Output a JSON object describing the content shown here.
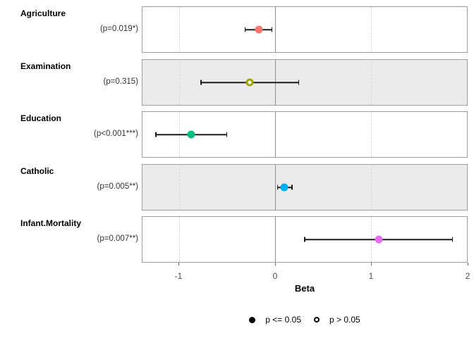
{
  "chart_data": {
    "type": "scatter",
    "subtype": "forest-coefficient-plot",
    "xlabel": "Beta",
    "axis": {
      "domain": [
        -1.38,
        2.0
      ],
      "ticks": [
        -1,
        0,
        1,
        2
      ],
      "dashed_gridlines": [
        -1,
        0,
        1
      ],
      "zero_line": 0
    },
    "rows": [
      {
        "term": "Agriculture",
        "p_label": "(p=0.019*)",
        "estimate": -0.17,
        "ci_low": -0.31,
        "ci_high": -0.03,
        "color": "#F8766D",
        "significant": true
      },
      {
        "term": "Examination",
        "p_label": "(p=0.315)",
        "estimate": -0.26,
        "ci_low": -0.77,
        "ci_high": 0.25,
        "color": "#A3A500",
        "significant": false
      },
      {
        "term": "Education",
        "p_label": "(p<0.001***)",
        "estimate": -0.87,
        "ci_low": -1.24,
        "ci_high": -0.5,
        "color": "#00BF7D",
        "significant": true
      },
      {
        "term": "Catholic",
        "p_label": "(p=0.005**)",
        "estimate": 0.1,
        "ci_low": 0.03,
        "ci_high": 0.18,
        "color": "#00B0F6",
        "significant": true
      },
      {
        "term": "Infant.Mortality",
        "p_label": "(p=0.007**)",
        "estimate": 1.08,
        "ci_low": 0.31,
        "ci_high": 1.85,
        "color": "#E76BF3",
        "significant": true
      }
    ],
    "colors": {
      "panel_bg": "#FFFFFF",
      "panel_alt_bg": "#EBEBEB",
      "panel_border": "#9E9E9E",
      "zero_line": "#909090",
      "gridline": "#D8D8D8",
      "errorbar": "#1A1A1A",
      "tick": "#666666",
      "tick_label_color": "#4D4D4D"
    }
  },
  "legend": {
    "items": [
      {
        "icon": "filled-circle",
        "label": "p <= 0.05"
      },
      {
        "icon": "open-circle",
        "label": "p > 0.05"
      }
    ]
  }
}
